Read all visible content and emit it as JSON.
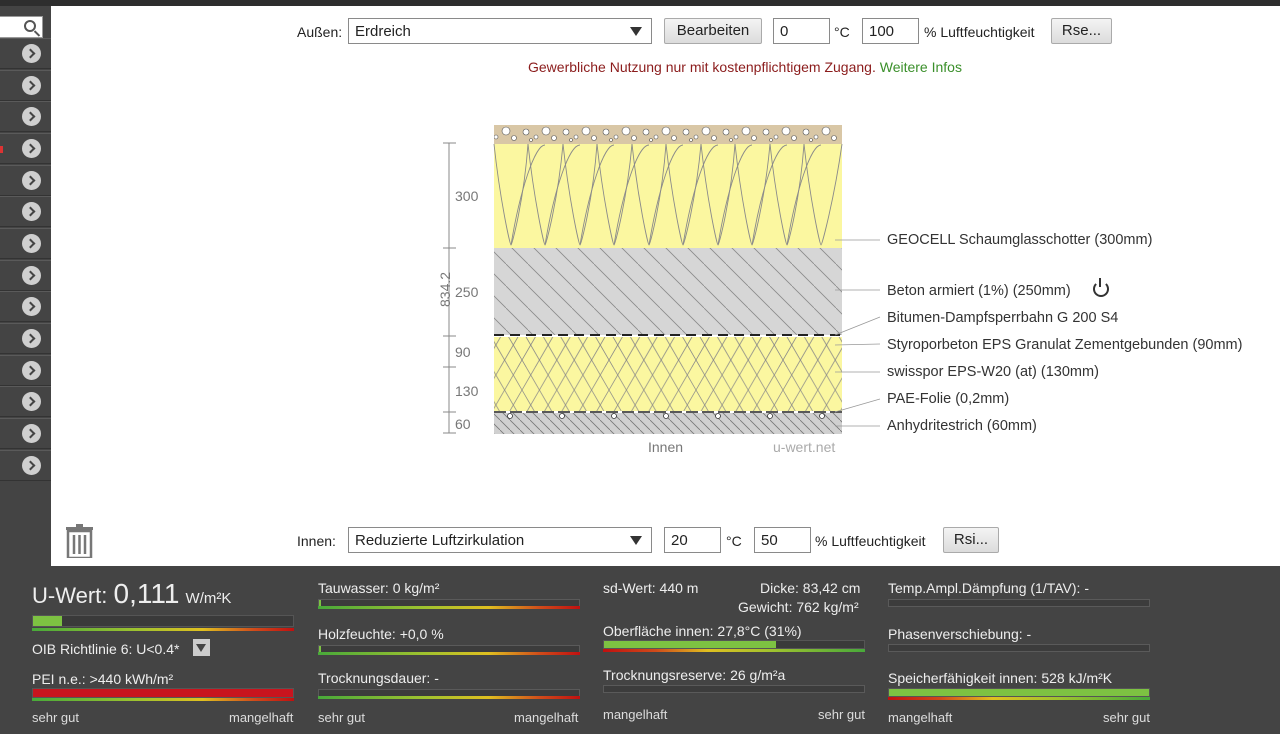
{
  "toolbar": {
    "outside_label": "Außen:",
    "outside_select": "Erdreich",
    "edit_button": "Bearbeiten",
    "outside_temp": "0",
    "temp_unit": "°C",
    "outside_humidity": "100",
    "humidity_unit": "% Luftfeuchtigkeit",
    "rse_button": "Rse..."
  },
  "notice": {
    "text": "Gewerbliche Nutzung nur mit kostenpflichtigem Zugang.",
    "link": "Weitere Infos"
  },
  "diagram": {
    "total_thickness": "834.2",
    "layer_dims": [
      "300",
      "250",
      "90",
      "130",
      "60"
    ],
    "inside_label": "Innen",
    "watermark": "u-wert.net",
    "layers": [
      "GEOCELL Schaumglasschotter (300mm)",
      "Beton armiert (1%) (250mm)",
      "Bitumen-Dampfsperrbahn G 200 S4",
      "Styroporbeton EPS Granulat Zementgebunden (90mm)",
      "swisspor EPS-W20 (at) (130mm)",
      "PAE-Folie (0,2mm)",
      "Anhydritestrich (60mm)"
    ]
  },
  "inside": {
    "label": "Innen:",
    "select": "Reduzierte Luftzirkulation",
    "temp": "20",
    "temp_unit": "°C",
    "humidity": "50",
    "humidity_unit": "% Luftfeuchtigkeit",
    "rsi_button": "Rsi..."
  },
  "results": {
    "uwert_label": "U-Wert:",
    "uwert_value": "0,111",
    "uwert_unit": "W/m²K",
    "oib": "OIB Richtlinie 6: U<0.4*",
    "pei": "PEI n.e.: >440 kWh/m²",
    "sehr_gut": "sehr gut",
    "mangelhaft": "mangelhaft",
    "tauwasser": "Tauwasser: 0 kg/m²",
    "holzfeuchte": "Holzfeuchte: +0,0 %",
    "trocknungsdauer": "Trocknungsdauer: -",
    "sd_wert": "sd-Wert: 440 m",
    "dicke": "Dicke: 83,42 cm",
    "gewicht": "Gewicht: 762 kg/m²",
    "oberflaeche": "Oberfläche innen: 27,8°C (31%)",
    "trocknungsreserve": "Trocknungsreserve: 26 g/m²a",
    "temp_ampl": "Temp.Ampl.Dämpfung (1/TAV): -",
    "phasen": "Phasenverschiebung: -",
    "speicher": "Speicherfähigkeit innen: 528 kJ/m²K",
    "uwert_level": 0.11,
    "oberflaeche_level": 0.66,
    "speicher_level": 1.0,
    "pei_level": 1.0
  },
  "colors": {
    "accent_green": "#7dc242",
    "bar_red": "#c8141e",
    "insulation_yellow": "#fbf7a0"
  }
}
